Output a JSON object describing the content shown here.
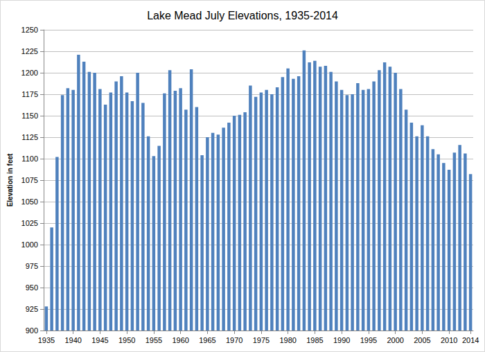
{
  "chart_data": {
    "type": "bar",
    "title": "Lake Mead July Elevations, 1935-2014",
    "y_label": "Elevation in feet",
    "categories": [
      "1935",
      null,
      null,
      null,
      null,
      "1940",
      null,
      null,
      null,
      null,
      "1945",
      null,
      null,
      null,
      null,
      "1950",
      null,
      null,
      null,
      null,
      "1955",
      null,
      null,
      null,
      null,
      "1960",
      null,
      null,
      null,
      null,
      "1965",
      null,
      null,
      null,
      null,
      "1970",
      null,
      null,
      null,
      null,
      "1975",
      null,
      null,
      null,
      null,
      "1980",
      null,
      null,
      null,
      null,
      "1985",
      null,
      null,
      null,
      null,
      "1990",
      null,
      null,
      null,
      null,
      "1995",
      null,
      null,
      null,
      null,
      "2000",
      null,
      null,
      null,
      null,
      "2005",
      null,
      null,
      null,
      null,
      "2010",
      null,
      null,
      null,
      "2014"
    ],
    "values": [
      928,
      1020,
      1102,
      1174,
      1182,
      1180,
      1221,
      1213,
      1201,
      1200,
      1181,
      1163,
      1177,
      1190,
      1196,
      1177,
      1167,
      1200,
      1165,
      1126,
      1103,
      1115,
      1176,
      1203,
      1179,
      1182,
      1157,
      1204,
      1160,
      1104,
      1125,
      1130,
      1128,
      1136,
      1142,
      1150,
      1151,
      1154,
      1185,
      1172,
      1177,
      1180,
      1175,
      1183,
      1195,
      1205,
      1193,
      1196,
      1226,
      1212,
      1214,
      1207,
      1208,
      1201,
      1190,
      1180,
      1174,
      1175,
      1188,
      1180,
      1181,
      1190,
      1203,
      1212,
      1207,
      1200,
      1181,
      1157,
      1142,
      1126,
      1139,
      1126,
      1111,
      1105,
      1095,
      1087,
      1107,
      1116,
      1106,
      1082
    ],
    "color": "#4f81bd",
    "ylim": [
      900,
      1250
    ],
    "yticks": [
      900,
      925,
      950,
      975,
      1000,
      1025,
      1050,
      1075,
      1100,
      1125,
      1150,
      1175,
      1200,
      1225,
      1250
    ],
    "grid": true
  }
}
